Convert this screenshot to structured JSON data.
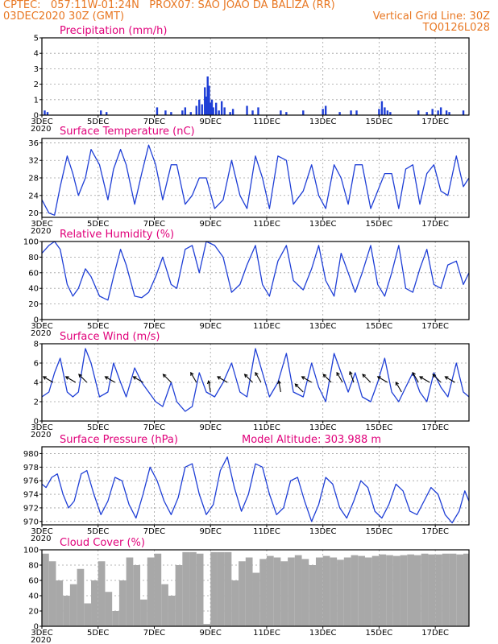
{
  "header": {
    "line1": "CPTEC:   057:11W-01:24N   PROX07: SAO JOAO DA BALIZA (RR)",
    "line2_left": "03DEC2020 30Z (GMT)",
    "line2_right": "Vertical Grid Line: 30Z",
    "line3_right": "TQ0126L028"
  },
  "colors": {
    "header": "#e87722",
    "title": "#e0007a",
    "series": "#1f3fd6",
    "cloud": "#a8a8a8",
    "wind": "#000000"
  },
  "x_axis": {
    "labels": [
      "3DEC",
      "5DEC",
      "7DEC",
      "9DEC",
      "11DEC",
      "13DEC",
      "15DEC",
      "17DEC"
    ],
    "sublabel": "2020",
    "x_units": "day index from 3DEC 00Z",
    "tick_days": [
      0,
      2,
      4,
      6,
      8,
      10,
      12,
      14
    ],
    "xlim": [
      0,
      15.2
    ]
  },
  "chart_data": [
    {
      "type": "bar",
      "title": "Precipitation   (mm/h)",
      "ylim": [
        0,
        5
      ],
      "yticks": [
        0,
        1,
        2,
        3,
        4,
        5
      ],
      "series": [
        {
          "x": [
            0.1,
            0.2,
            2.1,
            2.3,
            4.1,
            4.4,
            4.6,
            5.0,
            5.1,
            5.3,
            5.5,
            5.6,
            5.7,
            5.8,
            5.85,
            5.9,
            5.95,
            6.0,
            6.05,
            6.1,
            6.2,
            6.3,
            6.4,
            6.5,
            6.7,
            6.8,
            7.3,
            7.5,
            7.7,
            8.5,
            8.7,
            9.3,
            10.0,
            10.1,
            10.6,
            11.0,
            11.2,
            12.0,
            12.1,
            12.2,
            12.3,
            12.4,
            13.4,
            13.7,
            13.9,
            14.1,
            14.2,
            14.4,
            14.5,
            15.0
          ],
          "values": [
            0.3,
            0.2,
            0.3,
            0.2,
            0.5,
            0.3,
            0.2,
            0.3,
            0.5,
            0.2,
            0.6,
            1.0,
            0.7,
            1.8,
            1.2,
            2.5,
            1.9,
            0.8,
            1.0,
            0.5,
            0.8,
            0.3,
            0.9,
            0.5,
            0.2,
            0.4,
            0.6,
            0.3,
            0.5,
            0.3,
            0.2,
            0.3,
            0.4,
            0.6,
            0.2,
            0.3,
            0.3,
            0.4,
            0.9,
            0.5,
            0.3,
            0.2,
            0.3,
            0.2,
            0.4,
            0.3,
            0.5,
            0.3,
            0.2,
            0.3
          ]
        }
      ]
    },
    {
      "type": "line",
      "title": "Surface Temperature   (nC)",
      "ylim": [
        19,
        37
      ],
      "yticks": [
        20,
        24,
        28,
        32,
        36
      ],
      "series": [
        {
          "x": [
            0,
            0.25,
            0.45,
            0.65,
            0.9,
            1.1,
            1.3,
            1.55,
            1.75,
            2.05,
            2.35,
            2.55,
            2.8,
            3.0,
            3.3,
            3.55,
            3.8,
            4.05,
            4.3,
            4.6,
            4.8,
            5.1,
            5.35,
            5.6,
            5.85,
            6.15,
            6.45,
            6.75,
            7.05,
            7.3,
            7.6,
            7.85,
            8.1,
            8.4,
            8.7,
            8.95,
            9.3,
            9.6,
            9.85,
            10.1,
            10.4,
            10.65,
            10.9,
            11.15,
            11.4,
            11.7,
            11.95,
            12.2,
            12.45,
            12.7,
            12.95,
            13.2,
            13.45,
            13.7,
            13.95,
            14.2,
            14.45,
            14.75,
            15.0,
            15.2
          ],
          "values": [
            23,
            20,
            19.5,
            26,
            33,
            29,
            24,
            28,
            34.5,
            31,
            23,
            30,
            34.5,
            31,
            22,
            29,
            35.5,
            31,
            23,
            31,
            31,
            22,
            24,
            28,
            28,
            21,
            23,
            32,
            24,
            21,
            33,
            28,
            21,
            33,
            32,
            22,
            25,
            31,
            24,
            21,
            31,
            28,
            22,
            31,
            31,
            21,
            25,
            29,
            29,
            21,
            30,
            31,
            22,
            29,
            31,
            25,
            24,
            33,
            26,
            28
          ]
        }
      ]
    },
    {
      "type": "line",
      "title": "Relative Humidity   (%)",
      "ylim": [
        0,
        100
      ],
      "yticks": [
        0,
        20,
        40,
        60,
        80,
        100
      ],
      "series": [
        {
          "x": [
            0,
            0.25,
            0.45,
            0.65,
            0.9,
            1.1,
            1.3,
            1.55,
            1.75,
            2.05,
            2.35,
            2.55,
            2.8,
            3.0,
            3.3,
            3.55,
            3.8,
            4.05,
            4.3,
            4.6,
            4.8,
            5.1,
            5.35,
            5.6,
            5.85,
            6.15,
            6.45,
            6.75,
            7.05,
            7.3,
            7.6,
            7.85,
            8.1,
            8.4,
            8.7,
            8.95,
            9.3,
            9.6,
            9.85,
            10.1,
            10.4,
            10.65,
            10.9,
            11.15,
            11.4,
            11.7,
            11.95,
            12.2,
            12.45,
            12.7,
            12.95,
            13.2,
            13.45,
            13.7,
            13.95,
            14.2,
            14.45,
            14.75,
            15.0,
            15.2
          ],
          "values": [
            85,
            95,
            100,
            90,
            45,
            30,
            40,
            65,
            55,
            30,
            25,
            55,
            90,
            70,
            30,
            28,
            35,
            55,
            80,
            45,
            40,
            90,
            95,
            60,
            100,
            95,
            80,
            35,
            45,
            70,
            95,
            45,
            30,
            75,
            95,
            50,
            38,
            65,
            95,
            50,
            30,
            85,
            60,
            35,
            60,
            95,
            45,
            30,
            60,
            95,
            40,
            35,
            65,
            90,
            45,
            40,
            70,
            75,
            45,
            60
          ]
        }
      ]
    },
    {
      "type": "line",
      "title": "Surface Wind   (m/s)",
      "ylim": [
        0,
        8
      ],
      "yticks": [
        0,
        2,
        4,
        6,
        8
      ],
      "series": [
        {
          "x": [
            0,
            0.25,
            0.45,
            0.65,
            0.9,
            1.1,
            1.3,
            1.55,
            1.75,
            2.05,
            2.35,
            2.55,
            2.8,
            3.0,
            3.3,
            3.55,
            3.8,
            4.05,
            4.3,
            4.6,
            4.8,
            5.1,
            5.35,
            5.6,
            5.85,
            6.15,
            6.45,
            6.75,
            7.05,
            7.3,
            7.6,
            7.85,
            8.1,
            8.4,
            8.7,
            8.95,
            9.3,
            9.6,
            9.85,
            10.1,
            10.4,
            10.65,
            10.9,
            11.15,
            11.4,
            11.7,
            11.95,
            12.2,
            12.45,
            12.7,
            12.95,
            13.2,
            13.45,
            13.7,
            13.95,
            14.2,
            14.45,
            14.75,
            15.0,
            15.2
          ],
          "values": [
            2.5,
            3,
            5,
            6.5,
            3,
            2.5,
            3,
            7.5,
            6,
            2.5,
            3,
            6,
            4,
            2.5,
            5.5,
            4,
            3,
            2,
            1.5,
            4,
            2,
            1,
            1.5,
            5,
            3,
            2.5,
            4,
            6,
            3,
            2.5,
            7.5,
            5,
            2.5,
            4,
            7,
            3,
            2.5,
            6,
            3.5,
            2,
            7,
            5,
            3,
            5,
            2.5,
            2,
            4,
            6.5,
            3,
            2,
            3.5,
            5,
            3,
            2,
            5,
            3.5,
            2.5,
            6,
            3,
            2.5
          ]
        }
      ],
      "wind_arrows": {
        "x": [
          0.4,
          1.2,
          1.6,
          2.6,
          3.6,
          4.6,
          5.5,
          6.0,
          6.6,
          7.5,
          7.8,
          8.5,
          9.3,
          9.6,
          10.3,
          10.7,
          11.1,
          11.7,
          12.3,
          12.8,
          13.4,
          13.8,
          14.2,
          14.7
        ],
        "speed": [
          4,
          4,
          4,
          4,
          4,
          4,
          4,
          3,
          4,
          4,
          4,
          3,
          3,
          4,
          4,
          4,
          4,
          4,
          4,
          3,
          4,
          4,
          4,
          4
        ],
        "direction_deg": [
          60,
          60,
          45,
          60,
          60,
          45,
          30,
          10,
          60,
          45,
          30,
          10,
          45,
          60,
          45,
          30,
          20,
          45,
          60,
          30,
          30,
          60,
          45,
          60
        ]
      }
    },
    {
      "type": "line",
      "title": "Surface Pressure (hPa)",
      "annotation": "Model Altitude: 303.988  m",
      "ylim": [
        969.5,
        981
      ],
      "yticks": [
        970,
        972,
        974,
        976,
        978,
        980
      ],
      "series": [
        {
          "x": [
            0,
            0.15,
            0.35,
            0.55,
            0.75,
            0.95,
            1.15,
            1.4,
            1.6,
            1.85,
            2.1,
            2.35,
            2.6,
            2.85,
            3.1,
            3.35,
            3.6,
            3.85,
            4.1,
            4.35,
            4.6,
            4.85,
            5.1,
            5.35,
            5.6,
            5.85,
            6.1,
            6.35,
            6.6,
            6.85,
            7.1,
            7.35,
            7.6,
            7.85,
            8.1,
            8.35,
            8.6,
            8.85,
            9.1,
            9.35,
            9.6,
            9.85,
            10.1,
            10.35,
            10.6,
            10.85,
            11.1,
            11.35,
            11.6,
            11.85,
            12.1,
            12.35,
            12.6,
            12.85,
            13.1,
            13.35,
            13.6,
            13.85,
            14.1,
            14.35,
            14.6,
            14.85,
            15.05,
            15.2
          ],
          "values": [
            975.5,
            975,
            976.5,
            977,
            974,
            972,
            973,
            977,
            977.5,
            974,
            971,
            973,
            976.5,
            976,
            972.5,
            970.5,
            974,
            978,
            976,
            973,
            971,
            973.5,
            978,
            978.5,
            974,
            971,
            972.5,
            977.5,
            979.5,
            975,
            971.5,
            974,
            978.5,
            978,
            974,
            971,
            972,
            976,
            976.5,
            973,
            970,
            972.5,
            976.5,
            975.5,
            972,
            970.5,
            973,
            976,
            975,
            971.5,
            970.5,
            972.5,
            975.5,
            974.5,
            971.5,
            971,
            973,
            975,
            974,
            971,
            969.8,
            971.5,
            974.5,
            973
          ]
        }
      ]
    },
    {
      "type": "bar",
      "title": "Cloud Cover  (%)",
      "ylim": [
        0,
        100
      ],
      "yticks": [
        0,
        20,
        40,
        60,
        80,
        100
      ],
      "series": [
        {
          "x": [
            0,
            0.25,
            0.5,
            0.75,
            1.0,
            1.25,
            1.5,
            1.75,
            2.0,
            2.25,
            2.5,
            2.75,
            3.0,
            3.25,
            3.5,
            3.75,
            4.0,
            4.25,
            4.5,
            4.75,
            5.0,
            5.25,
            5.5,
            5.75,
            6.0,
            6.25,
            6.5,
            6.75,
            7.0,
            7.25,
            7.5,
            7.75,
            8.0,
            8.25,
            8.5,
            8.75,
            9.0,
            9.25,
            9.5,
            9.75,
            10.0,
            10.25,
            10.5,
            10.75,
            11.0,
            11.25,
            11.5,
            11.75,
            12.0,
            12.25,
            12.5,
            12.75,
            13.0,
            13.25,
            13.5,
            13.75,
            14.0,
            14.25,
            14.5,
            14.75,
            15.0
          ],
          "values": [
            95,
            85,
            60,
            40,
            55,
            75,
            30,
            60,
            85,
            45,
            20,
            60,
            90,
            80,
            35,
            90,
            95,
            55,
            40,
            80,
            97,
            97,
            95,
            3,
            97,
            97,
            97,
            60,
            85,
            90,
            70,
            88,
            92,
            90,
            85,
            90,
            93,
            88,
            80,
            90,
            92,
            90,
            87,
            90,
            93,
            92,
            90,
            92,
            94,
            93,
            92,
            93,
            94,
            93,
            95,
            94,
            94,
            95,
            95,
            94,
            95
          ]
        }
      ]
    }
  ]
}
